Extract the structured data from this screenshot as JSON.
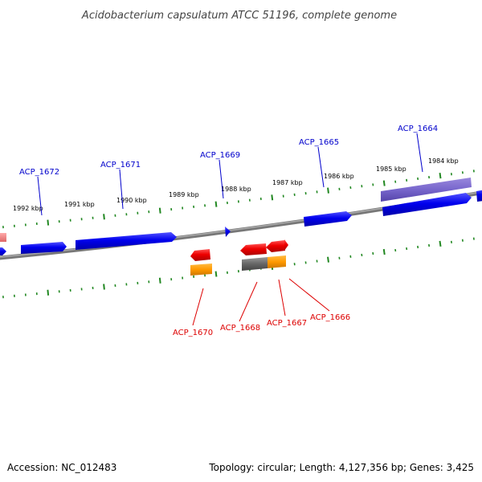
{
  "title": "Acidobacterium capsulatum ATCC 51196, complete genome",
  "footer": {
    "accession": "Accession: NC_012483",
    "summary": "Topology: circular; Length: 4,127,356 bp; Genes: 3,425"
  },
  "tick_labels": [
    "1992 kbp",
    "1991 kbp",
    "1990 kbp",
    "1989 kbp",
    "1988 kbp",
    "1987 kbp",
    "1986 kbp",
    "1985 kbp",
    "1984 kbp"
  ],
  "gene_labels_top": [
    "ACP_1672",
    "ACP_1671",
    "ACP_1669",
    "ACP_1665",
    "ACP_1664"
  ],
  "gene_labels_bottom": [
    "ACP_1670",
    "ACP_1668",
    "ACP_1667",
    "ACP_1666"
  ],
  "colors": {
    "forward_cds": "#0000ee",
    "reverse_cds": "#ee0000",
    "forward_feature": "#7766cc",
    "reverse_feature": "#ff9900",
    "pseudo_feature": "#666666",
    "partial_feature": "#ee8888",
    "backbone": "#888888",
    "tick": "#228822",
    "label_top": "#0000cc",
    "label_bottom": "#dd0000"
  }
}
